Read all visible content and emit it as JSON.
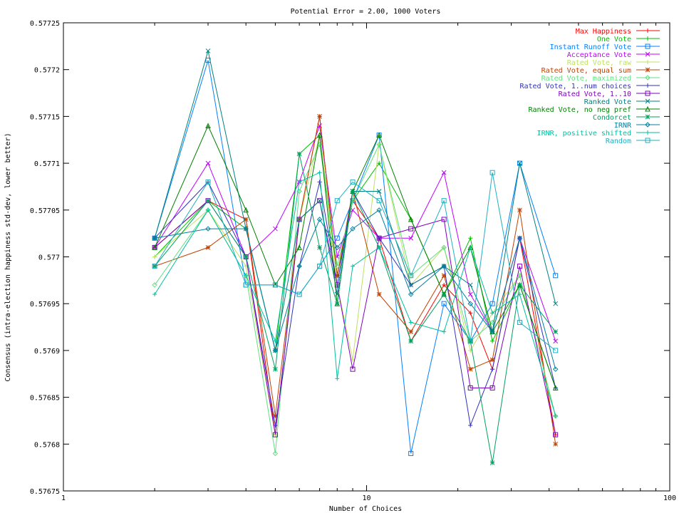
{
  "chart_data": {
    "type": "line",
    "title": "Potential Error = 2.00, 1000 Voters",
    "xlabel": "Number of Choices",
    "ylabel": "Consensus (intra-election happiness std-dev, lower better)",
    "x_scale": "log",
    "xlim": [
      1,
      100
    ],
    "ylim": [
      0.57675,
      0.57725
    ],
    "x_ticks": [
      "1",
      "10",
      "100"
    ],
    "y_ticks": [
      "0.57675",
      "0.5768",
      "0.57685",
      "0.5769",
      "0.57695",
      "0.577",
      "0.57705",
      "0.5771",
      "0.57715",
      "0.5772",
      "0.57725"
    ],
    "grid": false,
    "legend_position": "top-right",
    "x": [
      2,
      3,
      4,
      5,
      6,
      7,
      8,
      9,
      11,
      14,
      18,
      22,
      26,
      32,
      42
    ],
    "series": [
      {
        "name": "Max Happiness",
        "color": "#ff0000",
        "marker": "plus",
        "values": [
          0.57701,
          0.57706,
          0.57704,
          0.57681,
          0.57704,
          0.57715,
          0.57698,
          0.57706,
          0.57702,
          0.57691,
          0.57697,
          0.57694,
          0.57688,
          0.57702,
          0.57681
        ]
      },
      {
        "name": "One Vote",
        "color": "#00c000",
        "marker": "plus",
        "values": [
          0.577,
          0.57706,
          0.57703,
          0.5769,
          0.57711,
          0.57713,
          0.57698,
          0.57706,
          0.5771,
          0.57704,
          0.57696,
          0.57702,
          0.57691,
          0.57697,
          0.57686
        ]
      },
      {
        "name": "Instant Runoff Vote",
        "color": "#0080ff",
        "marker": "box",
        "values": [
          0.57702,
          0.57721,
          0.57697,
          0.57697,
          0.57696,
          0.57699,
          0.57702,
          0.57706,
          0.57713,
          0.57679,
          0.57695,
          0.57691,
          0.57695,
          0.5771,
          0.57698
        ]
      },
      {
        "name": "Acceptance Vote",
        "color": "#c000ff",
        "marker": "x",
        "values": [
          0.57701,
          0.5771,
          0.577,
          0.57703,
          0.57708,
          0.57714,
          0.577,
          0.57705,
          0.57702,
          0.57702,
          0.57709,
          0.57696,
          0.57692,
          0.57702,
          0.57691
        ]
      },
      {
        "name": "Rated Vote, raw",
        "color": "#c0e060",
        "marker": "plus",
        "values": [
          0.577,
          0.57705,
          0.57699,
          0.57681,
          0.57704,
          0.57713,
          0.57697,
          0.57689,
          0.57712,
          0.57697,
          0.57701,
          0.5769,
          0.57694,
          0.57698,
          0.57683
        ]
      },
      {
        "name": "Rated Vote, equal sum",
        "color": "#c04000",
        "marker": "star",
        "values": [
          0.57699,
          0.57701,
          0.57704,
          0.57683,
          0.57704,
          0.57715,
          0.57698,
          0.57707,
          0.57696,
          0.57692,
          0.57698,
          0.57688,
          0.57689,
          0.57705,
          0.5768
        ]
      },
      {
        "name": "Rated Vote, maximized",
        "color": "#60e080",
        "marker": "diamond",
        "values": [
          0.57697,
          0.57705,
          0.57698,
          0.57679,
          0.57707,
          0.57712,
          0.57699,
          0.57706,
          0.57712,
          0.57698,
          0.57701,
          0.57691,
          0.57693,
          0.57698,
          0.57683
        ]
      },
      {
        "name": "Rated Vote, 1..num choices",
        "color": "#3030c0",
        "marker": "plus",
        "values": [
          0.57702,
          0.57708,
          0.577,
          0.57682,
          0.57699,
          0.57708,
          0.57697,
          0.57707,
          0.57702,
          0.57697,
          0.57699,
          0.57682,
          0.57688,
          0.57702,
          0.57686
        ]
      },
      {
        "name": "Rated Vote, 1..10",
        "color": "#8000c0",
        "marker": "box",
        "values": [
          0.57701,
          0.57706,
          0.577,
          0.57681,
          0.57704,
          0.57706,
          0.57697,
          0.57688,
          0.57702,
          0.57703,
          0.57704,
          0.57686,
          0.57686,
          0.57699,
          0.57681
        ]
      },
      {
        "name": "Ranked Vote",
        "color": "#008080",
        "marker": "x",
        "values": [
          0.57702,
          0.57722,
          0.57703,
          0.5769,
          0.57704,
          0.57706,
          0.57696,
          0.57707,
          0.57707,
          0.57697,
          0.57699,
          0.57697,
          0.57692,
          0.5771,
          0.57695
        ]
      },
      {
        "name": "Ranked Vote, no neg pref",
        "color": "#008000",
        "marker": "triangle",
        "values": [
          0.57701,
          0.57714,
          0.57705,
          0.57697,
          0.57701,
          0.57713,
          0.57695,
          0.57707,
          0.57713,
          0.57704,
          0.57696,
          0.57701,
          0.57692,
          0.57697,
          0.57686
        ]
      },
      {
        "name": "Condorcet",
        "color": "#00a060",
        "marker": "star",
        "values": [
          0.57699,
          0.57706,
          0.577,
          0.57688,
          0.57711,
          0.57701,
          0.57695,
          0.57707,
          0.57701,
          0.57691,
          0.57696,
          0.57691,
          0.57678,
          0.57697,
          0.57692
        ]
      },
      {
        "name": "IRNR",
        "color": "#0080a0",
        "marker": "diamond",
        "values": [
          0.57702,
          0.57703,
          0.57703,
          0.5769,
          0.57699,
          0.57704,
          0.57701,
          0.57703,
          0.57705,
          0.57696,
          0.57699,
          0.57695,
          0.57692,
          0.57702,
          0.57688
        ]
      },
      {
        "name": "IRNR, positive shifted",
        "color": "#00c0a0",
        "marker": "plus",
        "values": [
          0.57696,
          0.57705,
          0.57698,
          0.57691,
          0.57708,
          0.57709,
          0.57687,
          0.57699,
          0.57701,
          0.57693,
          0.57692,
          0.57701,
          0.57694,
          0.57696,
          0.57683
        ]
      },
      {
        "name": "Random",
        "color": "#20b0c0",
        "marker": "box",
        "values": [
          0.57699,
          0.57708,
          0.57697,
          0.57697,
          0.57696,
          0.57699,
          0.57706,
          0.57708,
          0.57706,
          0.57698,
          0.57706,
          0.57691,
          0.57709,
          0.57693,
          0.5769
        ]
      }
    ]
  }
}
